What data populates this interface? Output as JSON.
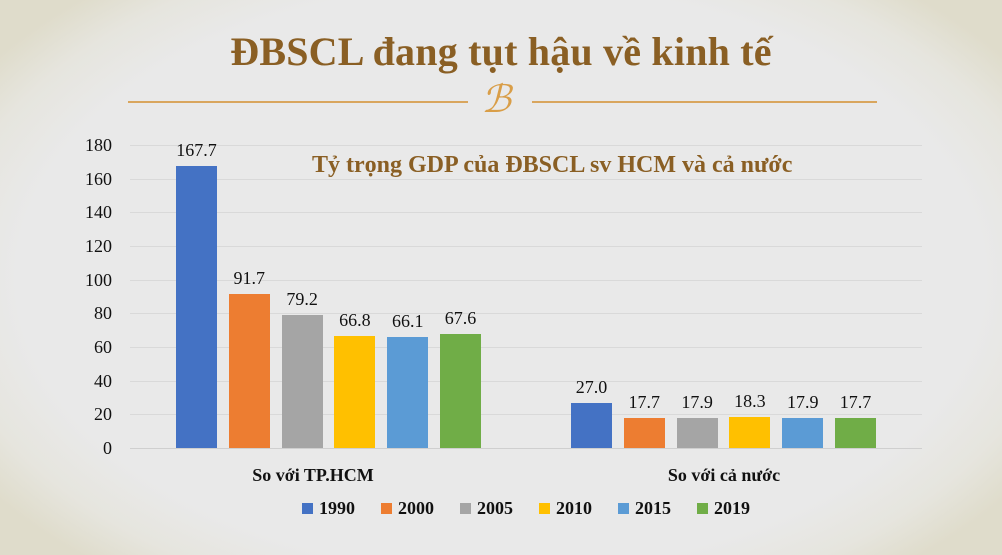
{
  "slide": {
    "title": "ĐBSCL đang tụt hậu về kinh tế",
    "ornament_glyph": "ℬ",
    "ornament_icon": "decorative-flourish-icon"
  },
  "chart_data": {
    "type": "bar",
    "title": "Tỷ trọng GDP của ĐBSCL sv HCM và cả nước",
    "xlabel": "",
    "ylabel": "",
    "ylim": [
      0,
      180
    ],
    "yticks": [
      "0",
      "20",
      "40",
      "60",
      "80",
      "100",
      "120",
      "140",
      "160",
      "180"
    ],
    "grid": true,
    "legend_position": "bottom",
    "categories": [
      "So với TP.HCM",
      "So với cả nước"
    ],
    "series": [
      {
        "name": "1990",
        "color": "#4472c4",
        "values": [
          167.7,
          27.0
        ],
        "labels": [
          "167.7",
          "27.0"
        ]
      },
      {
        "name": "2000",
        "color": "#ed7d31",
        "values": [
          91.7,
          17.7
        ],
        "labels": [
          "91.7",
          "17.7"
        ]
      },
      {
        "name": "2005",
        "color": "#a5a5a5",
        "values": [
          79.2,
          17.9
        ],
        "labels": [
          "79.2",
          "17.9"
        ]
      },
      {
        "name": "2010",
        "color": "#ffc000",
        "values": [
          66.8,
          18.3
        ],
        "labels": [
          "66.8",
          "18.3"
        ]
      },
      {
        "name": "2015",
        "color": "#5b9bd5",
        "values": [
          66.1,
          17.9
        ],
        "labels": [
          "66.1",
          "17.9"
        ]
      },
      {
        "name": "2019",
        "color": "#70ad47",
        "values": [
          67.6,
          17.7
        ],
        "labels": [
          "67.6",
          "17.7"
        ]
      }
    ]
  }
}
